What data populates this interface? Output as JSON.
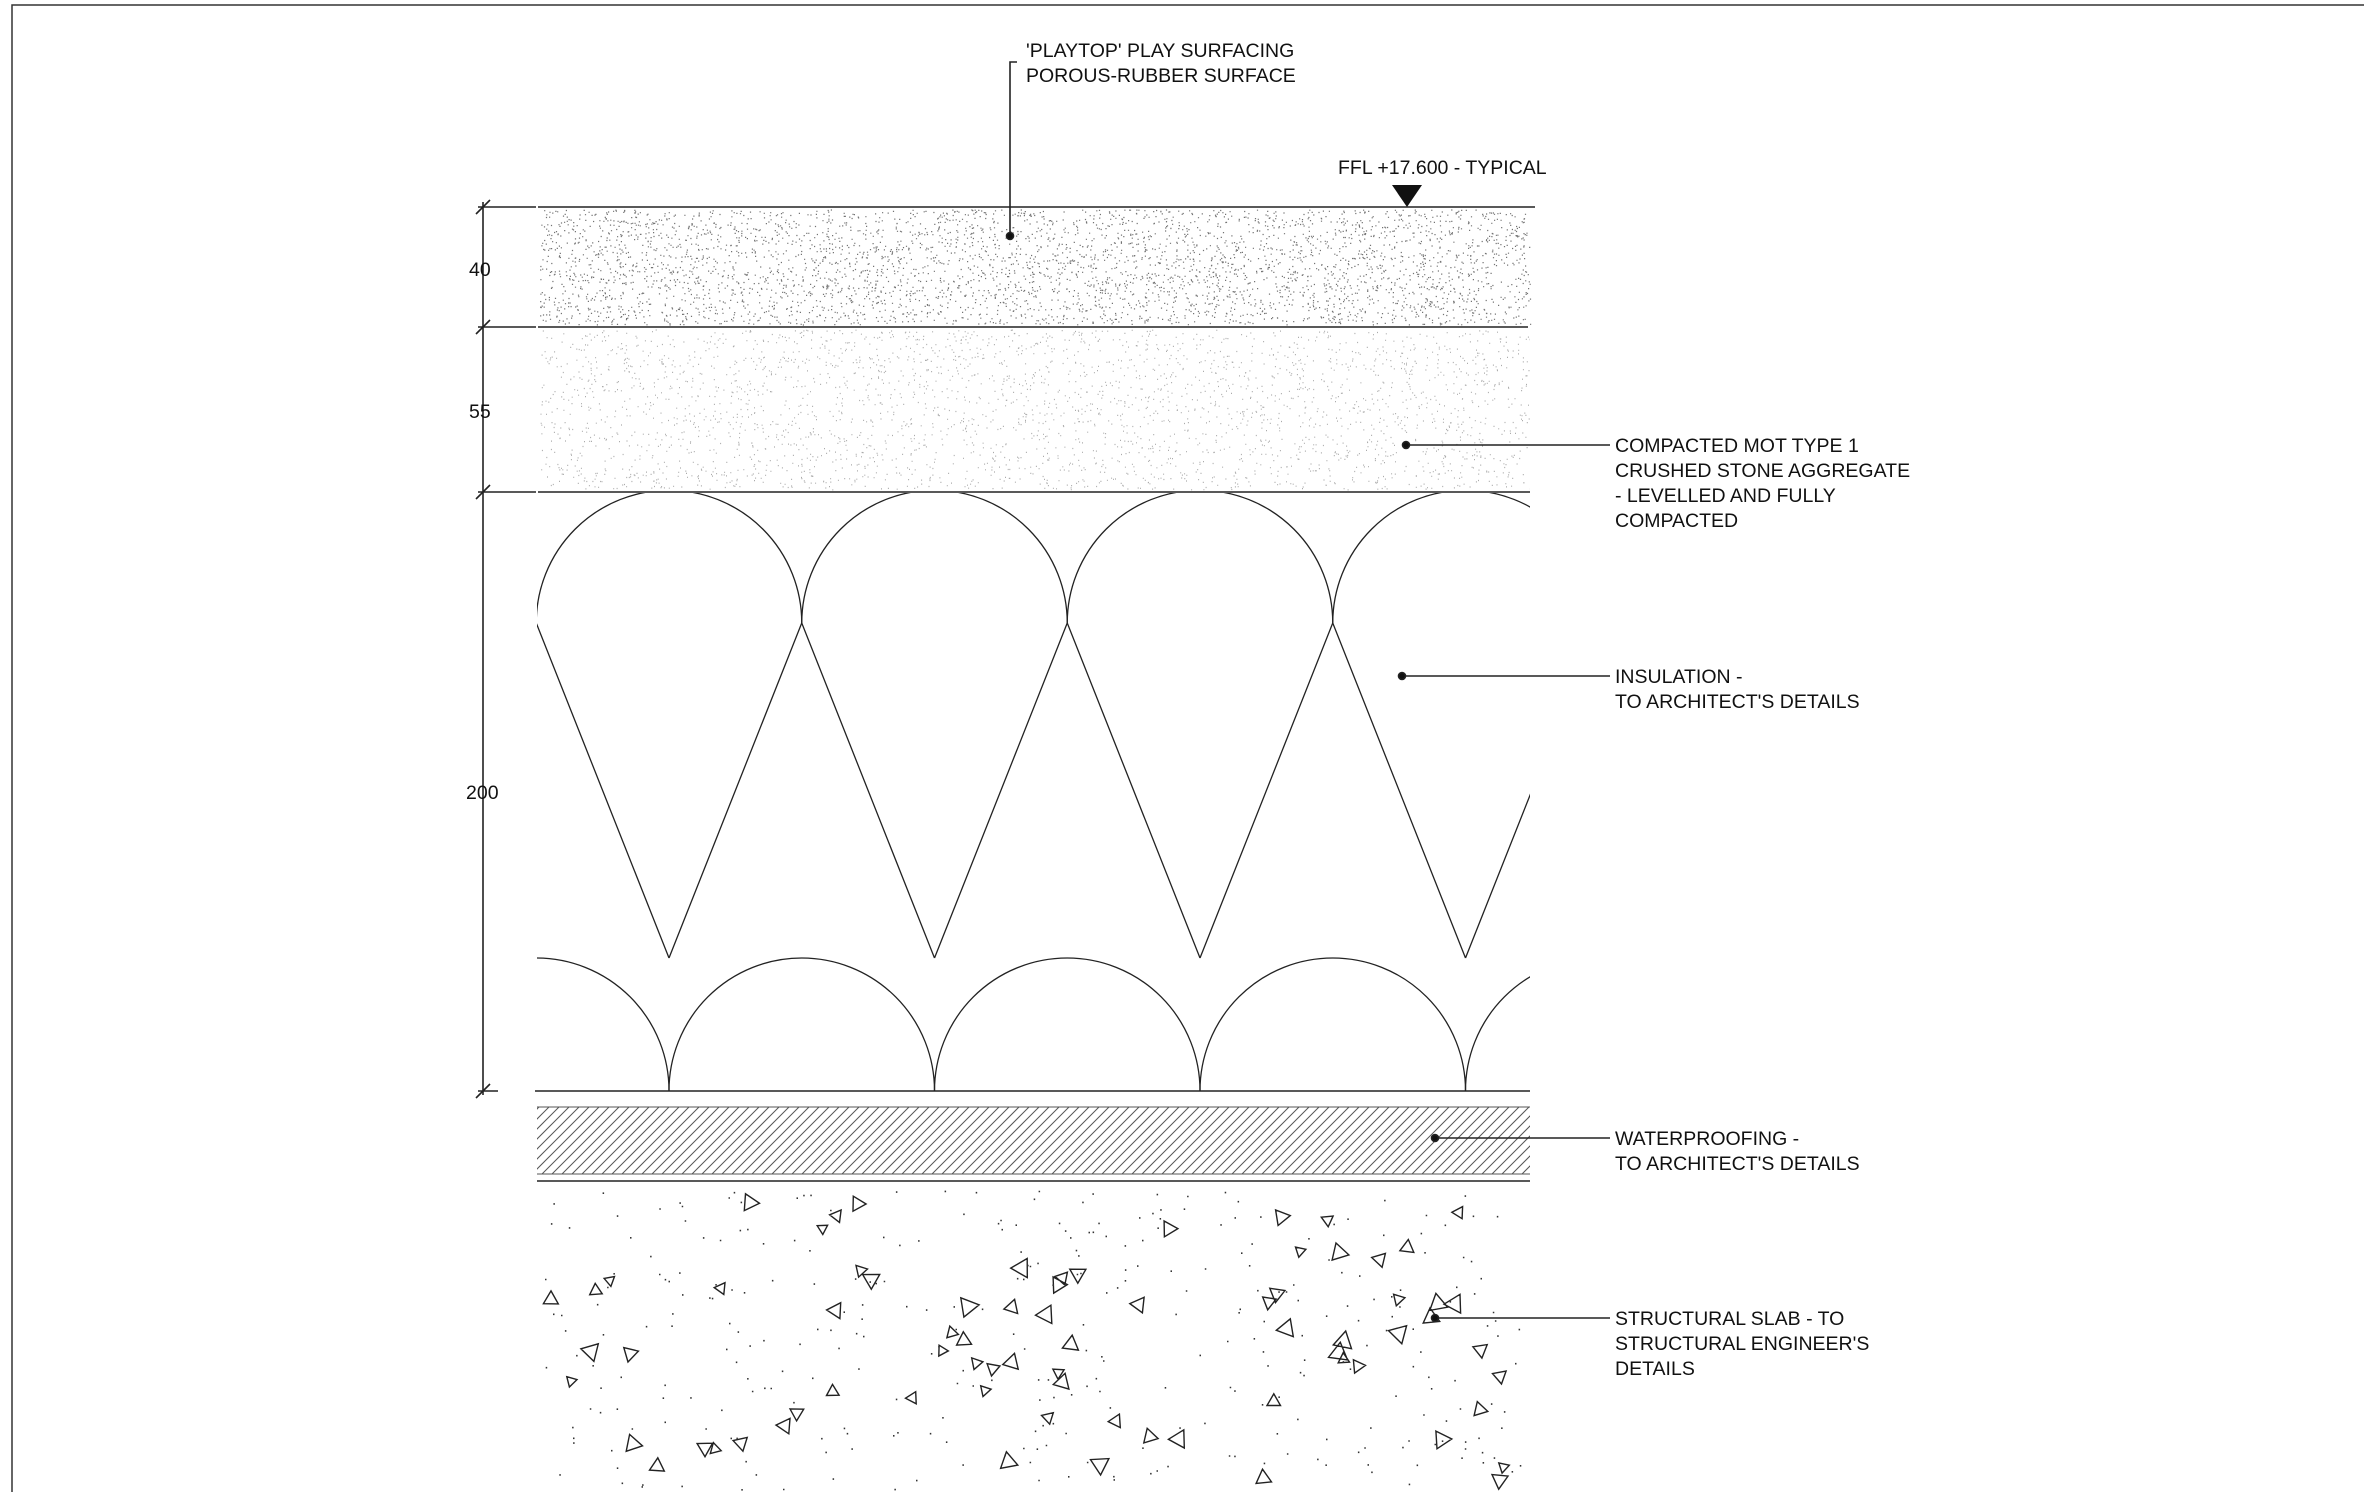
{
  "ffl_marker": {
    "text": "FFL +17.600 - TYPICAL"
  },
  "dimensions": [
    "40",
    "55",
    "200"
  ],
  "labels": {
    "surfacing": [
      "'PLAYTOP' PLAY SURFACING",
      "POROUS-RUBBER SURFACE"
    ],
    "aggregate": [
      "COMPACTED MOT TYPE 1",
      "CRUSHED STONE AGGREGATE",
      "- LEVELLED AND FULLY",
      "COMPACTED"
    ],
    "insulation": [
      "INSULATION -",
      "TO ARCHITECT'S DETAILS"
    ],
    "waterproofing": [
      "WATERPROOFING -",
      "TO ARCHITECT'S DETAILS"
    ],
    "slab": [
      "STRUCTURAL SLAB - TO",
      "STRUCTURAL ENGINEER'S",
      "DETAILS"
    ]
  },
  "colors": {
    "line": "#222222",
    "hatch": "#555555",
    "background": "#ffffff"
  }
}
